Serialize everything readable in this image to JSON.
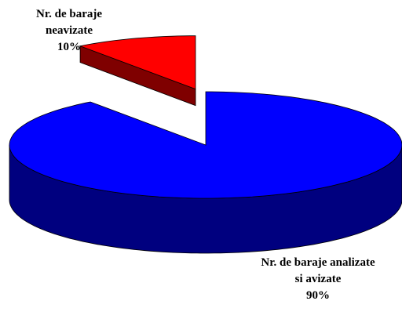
{
  "chart_data": {
    "type": "pie",
    "three_d": true,
    "categories": [
      "Nr. de  baraje neavizate",
      "Nr. de  baraje analizate si avizate"
    ],
    "values": [
      10,
      90
    ],
    "value_labels": [
      "10%",
      "90%"
    ],
    "colors": [
      "#ff0000",
      "#0000ff"
    ],
    "exploded": [
      true,
      false
    ]
  }
}
